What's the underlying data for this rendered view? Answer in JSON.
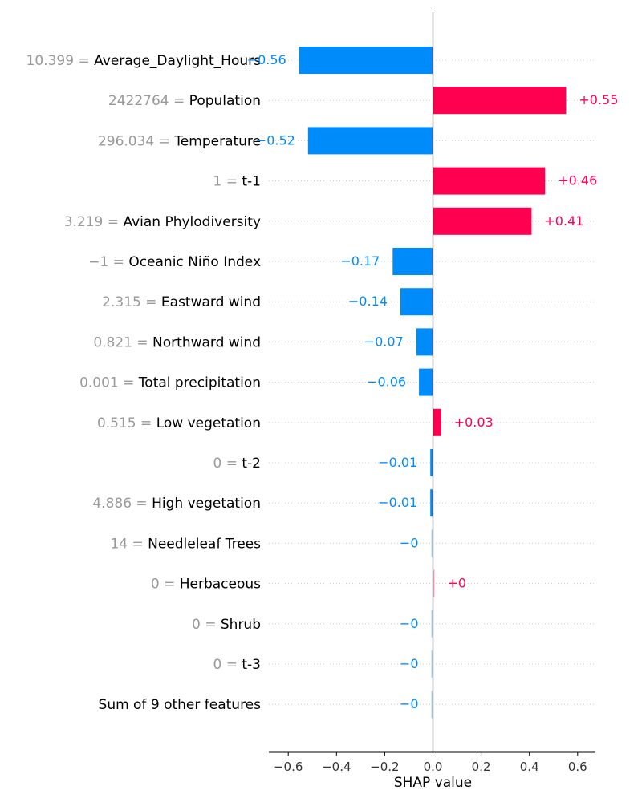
{
  "chart_data": {
    "type": "bar",
    "orientation": "horizontal",
    "title": "",
    "xlabel": "SHAP value",
    "ylabel": "",
    "xlim": [
      -0.67,
      0.67
    ],
    "xticks": [
      -0.6,
      -0.4,
      -0.2,
      0.0,
      0.2,
      0.4,
      0.6
    ],
    "xtick_labels": [
      "−0.6",
      "−0.4",
      "−0.2",
      "0.0",
      "0.2",
      "0.4",
      "0.6"
    ],
    "grid": "dotted horizontal lines per row",
    "colors": {
      "positive": "#ff0051",
      "negative": "#008bfb",
      "feature_value_text": "#999999",
      "feature_name_text": "#000000"
    },
    "bars": [
      {
        "feature_value": "10.399",
        "feature_name": "Average_Daylight_Hours",
        "value": -0.555,
        "label": "−0.56"
      },
      {
        "feature_value": "2422764",
        "feature_name": "Population",
        "value": 0.552,
        "label": "+0.55"
      },
      {
        "feature_value": "296.034",
        "feature_name": "Temperature",
        "value": -0.518,
        "label": "−0.52"
      },
      {
        "feature_value": "1",
        "feature_name": "t-1",
        "value": 0.465,
        "label": "+0.46"
      },
      {
        "feature_value": "3.219",
        "feature_name": "Avian Phylodiversity",
        "value": 0.409,
        "label": "+0.41"
      },
      {
        "feature_value": "−1",
        "feature_name": "Oceanic Niño Index",
        "value": -0.167,
        "label": "−0.17"
      },
      {
        "feature_value": "2.315",
        "feature_name": "Eastward wind",
        "value": -0.135,
        "label": "−0.14"
      },
      {
        "feature_value": "0.821",
        "feature_name": "Northward wind",
        "value": -0.069,
        "label": "−0.07"
      },
      {
        "feature_value": "0.001",
        "feature_name": "Total precipitation",
        "value": -0.058,
        "label": "−0.06"
      },
      {
        "feature_value": "0.515",
        "feature_name": "Low vegetation",
        "value": 0.034,
        "label": "+0.03"
      },
      {
        "feature_value": "0",
        "feature_name": "t-2",
        "value": -0.011,
        "label": "−0.01"
      },
      {
        "feature_value": "4.886",
        "feature_name": "High vegetation",
        "value": -0.011,
        "label": "−0.01"
      },
      {
        "feature_value": "14",
        "feature_name": "Needleleaf Trees",
        "value": -0.002,
        "label": "−0"
      },
      {
        "feature_value": "0",
        "feature_name": "Herbaceous",
        "value": 0.002,
        "label": "+0"
      },
      {
        "feature_value": "0",
        "feature_name": "Shrub",
        "value": -0.002,
        "label": "−0"
      },
      {
        "feature_value": "0",
        "feature_name": "t-3",
        "value": -0.002,
        "label": "−0"
      },
      {
        "feature_value": "",
        "feature_name": "Sum of 9 other features",
        "value": -0.002,
        "label": "−0"
      }
    ]
  }
}
